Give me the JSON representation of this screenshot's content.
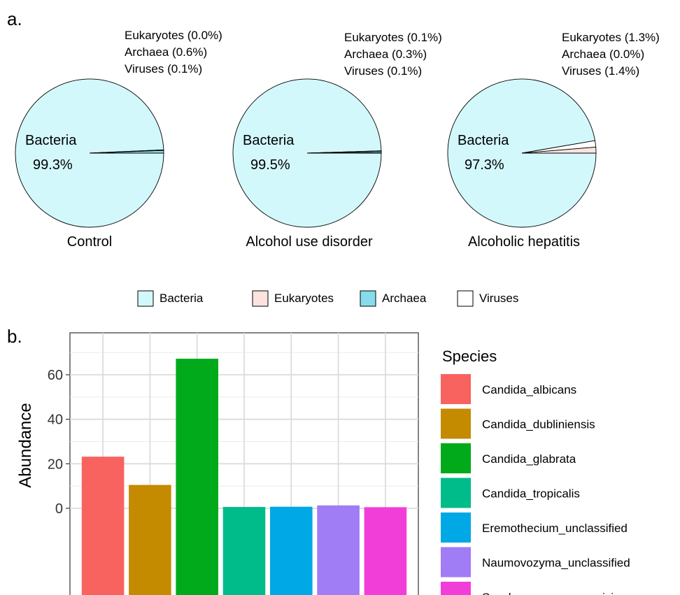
{
  "panel_a_label": "a.",
  "panel_b_label": "b.",
  "colors": {
    "Bacteria": "#d3f8fc",
    "Eukaryotes": "#fde3e0",
    "Archaea": "#86dceb",
    "Viruses": "#ffffff"
  },
  "chart_data": [
    {
      "type": "pie",
      "pies": [
        {
          "caption": "Control",
          "main_label": "Bacteria",
          "main_value": "99.3%",
          "annotations": [
            "Eukaryotes (0.0%)",
            "Archaea (0.6%)",
            "Viruses (0.1%)"
          ],
          "slices": [
            {
              "name": "Bacteria",
              "value": 99.3
            },
            {
              "name": "Eukaryotes",
              "value": 0.0
            },
            {
              "name": "Archaea",
              "value": 0.6
            },
            {
              "name": "Viruses",
              "value": 0.1
            }
          ]
        },
        {
          "caption": "Alcohol use disorder",
          "main_label": "Bacteria",
          "main_value": "99.5%",
          "annotations": [
            "Eukaryotes (0.1%)",
            "Archaea (0.3%)",
            "Viruses (0.1%)"
          ],
          "slices": [
            {
              "name": "Bacteria",
              "value": 99.5
            },
            {
              "name": "Eukaryotes",
              "value": 0.1
            },
            {
              "name": "Archaea",
              "value": 0.3
            },
            {
              "name": "Viruses",
              "value": 0.1
            }
          ]
        },
        {
          "caption": "Alcoholic hepatitis",
          "main_label": "Bacteria",
          "main_value": "97.3%",
          "annotations": [
            "Eukaryotes (1.3%)",
            "Archaea (0.0%)",
            "Viruses (1.4%)"
          ],
          "slices": [
            {
              "name": "Bacteria",
              "value": 97.3
            },
            {
              "name": "Eukaryotes",
              "value": 1.3
            },
            {
              "name": "Archaea",
              "value": 0.0
            },
            {
              "name": "Viruses",
              "value": 1.4
            }
          ]
        }
      ],
      "legend": [
        "Bacteria",
        "Eukaryotes",
        "Archaea",
        "Viruses"
      ],
      "legend_position": "bottom"
    },
    {
      "type": "bar",
      "ylabel": "Abundance",
      "xlabel": "",
      "ylim": [
        0,
        70
      ],
      "yticks": [
        0,
        20,
        40,
        60
      ],
      "grid": true,
      "legend_title": "Species",
      "legend_position": "right",
      "categories": [
        "Candida_albicans",
        "Candida_dubliniensis",
        "Candida_glabrata",
        "Candida_tropicalis",
        "Eremothecium_unclassified",
        "Naumovozyma_unclassified",
        "Saccharomyces_cerevisiae"
      ],
      "values": [
        23.2,
        10.5,
        67.2,
        0.6,
        0.7,
        1.3,
        0.5
      ],
      "colors": [
        "#f8635f",
        "#c48a00",
        "#00aa1b",
        "#00bb8a",
        "#00a8e5",
        "#a07cf5",
        "#f23ed8"
      ]
    }
  ]
}
